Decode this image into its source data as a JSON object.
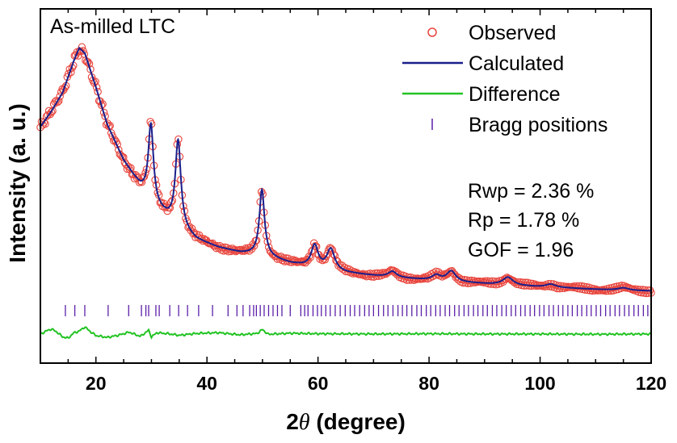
{
  "chart_data": {
    "type": "line",
    "sample_label": "As-milled LTC",
    "xlabel_prefix": "2",
    "xlabel_symbol": "θ",
    "xlabel_suffix": " (degree)",
    "ylabel": "Intensity (a. u.)",
    "xlim": [
      10,
      120
    ],
    "ylim": [
      -0.25,
      1.1
    ],
    "x_ticks": [
      20,
      40,
      60,
      80,
      100,
      120
    ],
    "x_minor_step": 5,
    "legend": {
      "position": "top-right",
      "entries": [
        {
          "label": "Observed",
          "marker": "circle-open",
          "color": "#e8453c"
        },
        {
          "label": "Calculated",
          "marker": "line",
          "color": "#1a1f8c"
        },
        {
          "label": "Difference",
          "marker": "line",
          "color": "#22c322"
        },
        {
          "label": "Bragg positions",
          "marker": "tick",
          "color": "#5b1fa8"
        }
      ]
    },
    "stats": [
      {
        "text": "Rwp = 2.36 %"
      },
      {
        "text": "Rp = 1.78 %"
      },
      {
        "text": "GOF = 1.96"
      }
    ],
    "background": {
      "x": [
        10,
        12,
        14,
        16,
        17,
        18,
        20,
        22,
        25,
        28,
        31,
        34,
        38,
        42,
        46,
        50,
        55,
        60,
        65,
        70,
        75,
        80,
        85,
        90,
        95,
        100,
        105,
        110,
        115,
        120
      ],
      "y": [
        0.65,
        0.71,
        0.78,
        0.9,
        0.95,
        0.93,
        0.8,
        0.66,
        0.52,
        0.42,
        0.34,
        0.28,
        0.22,
        0.19,
        0.17,
        0.16,
        0.13,
        0.11,
        0.094,
        0.083,
        0.074,
        0.066,
        0.058,
        0.052,
        0.046,
        0.04,
        0.036,
        0.031,
        0.027,
        0.025
      ]
    },
    "peaks": [
      {
        "center": 29.9,
        "height": 0.29,
        "width": 0.55
      },
      {
        "center": 34.8,
        "height": 0.33,
        "width": 0.6
      },
      {
        "center": 49.9,
        "height": 0.25,
        "width": 0.55
      },
      {
        "center": 59.4,
        "height": 0.085,
        "width": 0.75
      },
      {
        "center": 62.3,
        "height": 0.08,
        "width": 0.85
      },
      {
        "center": 73.4,
        "height": 0.022,
        "width": 0.9
      },
      {
        "center": 81.3,
        "height": 0.02,
        "width": 0.9
      },
      {
        "center": 84.0,
        "height": 0.04,
        "width": 1.0
      },
      {
        "center": 94.2,
        "height": 0.03,
        "width": 1.1
      },
      {
        "center": 101.9,
        "height": 0.012,
        "width": 1.1
      },
      {
        "center": 115.0,
        "height": 0.01,
        "width": 1.2
      }
    ],
    "bragg_positions": [
      14.5,
      16.2,
      18.0,
      22.2,
      25.9,
      28.2,
      29.0,
      29.5,
      30.8,
      31.4,
      33.3,
      34.9,
      36.5,
      38.5,
      41.0,
      43.8,
      45.4,
      46.5,
      47.7,
      48.4,
      48.9,
      49.6,
      50.3,
      51.1,
      51.9,
      52.7,
      53.5,
      55.0,
      56.9,
      57.6,
      58.2,
      59.1,
      59.9,
      60.6,
      61.4,
      62.2,
      63.1,
      64.0,
      64.9,
      65.8,
      66.6,
      67.5,
      68.4,
      69.2,
      70.0,
      70.9,
      71.8,
      72.6,
      73.5,
      74.4,
      75.2,
      76.0,
      76.9,
      77.8,
      78.6,
      79.5,
      80.3,
      81.2,
      82.0,
      82.9,
      83.7,
      84.6,
      85.4,
      86.3,
      87.1,
      88.0,
      88.8,
      89.7,
      90.5,
      91.4,
      92.2,
      93.1,
      93.9,
      94.8,
      95.6,
      96.5,
      97.3,
      98.2,
      99.0,
      99.9,
      100.7,
      101.6,
      102.4,
      103.3,
      104.1,
      105.0,
      105.8,
      106.7,
      107.5,
      108.4,
      109.2,
      110.1,
      110.9,
      111.8,
      112.6,
      113.5,
      114.3,
      115.2,
      116.0,
      116.9,
      117.7,
      118.6,
      119.4
    ],
    "bragg_level": -0.05,
    "difference": {
      "offset": -0.14,
      "x": [
        10,
        11,
        12,
        13,
        14,
        15,
        16,
        17,
        18,
        19,
        20,
        22,
        24,
        26,
        28,
        29.5,
        30,
        31,
        33,
        35,
        38,
        42,
        46,
        49,
        50,
        51,
        55,
        60,
        70,
        80,
        90,
        100,
        110,
        120
      ],
      "y": [
        0.0,
        0.012,
        0.02,
        0.008,
        -0.01,
        -0.015,
        0.005,
        0.012,
        0.028,
        0.01,
        -0.005,
        -0.012,
        -0.004,
        0.008,
        -0.008,
        0.015,
        -0.01,
        0.006,
        0.002,
        -0.004,
        0.003,
        0.006,
        -0.002,
        0.003,
        0.018,
        0.0,
        0.004,
        0.002,
        0.001,
        0.002,
        0.001,
        0.001,
        0.0,
        0.001
      ]
    }
  }
}
